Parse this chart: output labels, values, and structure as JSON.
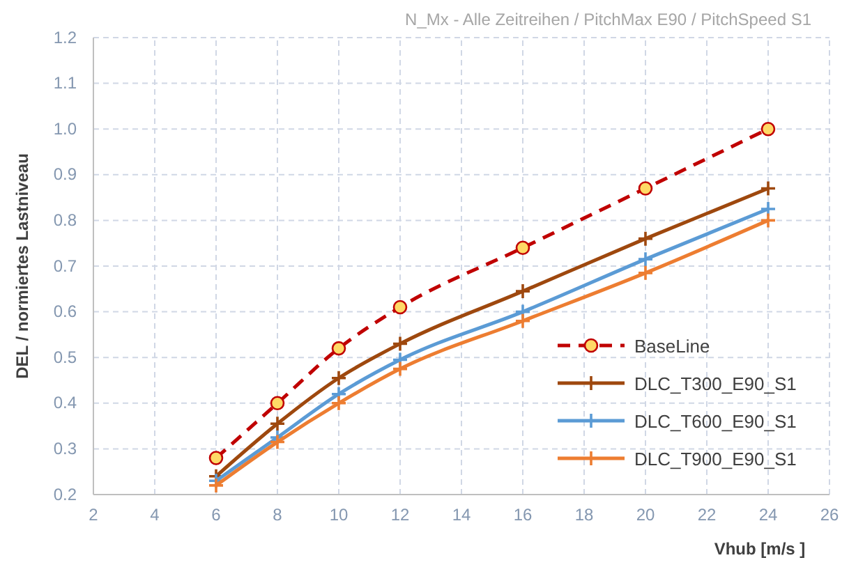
{
  "chart_data": {
    "type": "line",
    "title": "N_Mx - Alle Zeitreihen / PitchMax E90 / PitchSpeed S1",
    "xlabel": "Vhub [m/s ]",
    "ylabel": "DEL / normiertes Lastniveau",
    "x": [
      6,
      8,
      10,
      12,
      16,
      20,
      24
    ],
    "series": [
      {
        "name": "BaseLine",
        "color": "#c00000",
        "line_style": "dashed",
        "marker": "circle",
        "values": [
          0.28,
          0.4,
          0.52,
          0.61,
          0.74,
          0.87,
          1.0
        ]
      },
      {
        "name": "DLC_T300_E90_S1",
        "color": "#9e480e",
        "line_style": "solid",
        "marker": "cross",
        "values": [
          0.24,
          0.355,
          0.455,
          0.53,
          0.645,
          0.76,
          0.87
        ]
      },
      {
        "name": "DLC_T600_E90_S1",
        "color": "#5b9bd5",
        "line_style": "solid",
        "marker": "cross",
        "values": [
          0.23,
          0.325,
          0.42,
          0.495,
          0.6,
          0.715,
          0.825
        ]
      },
      {
        "name": "DLC_T900_E90_S1",
        "color": "#ed7d31",
        "line_style": "solid",
        "marker": "cross",
        "values": [
          0.22,
          0.315,
          0.4,
          0.475,
          0.58,
          0.685,
          0.8
        ]
      }
    ],
    "xlim": [
      2,
      26
    ],
    "xticks": [
      2,
      4,
      6,
      8,
      10,
      12,
      14,
      16,
      18,
      20,
      22,
      24,
      26
    ],
    "ylim": [
      0.2,
      1.2
    ],
    "yticks": [
      {
        "value": 0.2,
        "label": "0.2"
      },
      {
        "value": 0.3,
        "label": "0.3"
      },
      {
        "value": 0.4,
        "label": "0.4"
      },
      {
        "value": 0.5,
        "label": "0.5"
      },
      {
        "value": 0.6,
        "label": "0.6"
      },
      {
        "value": 0.7,
        "label": "0.7"
      },
      {
        "value": 0.8,
        "label": "0.8"
      },
      {
        "value": 0.9,
        "label": "0.9"
      },
      {
        "value": 1.0,
        "label": "1.0"
      },
      {
        "value": 1.1,
        "label": "1.1"
      },
      {
        "value": 1.2,
        "label": "1.2"
      }
    ],
    "grid": true,
    "legend": "bottom right"
  }
}
